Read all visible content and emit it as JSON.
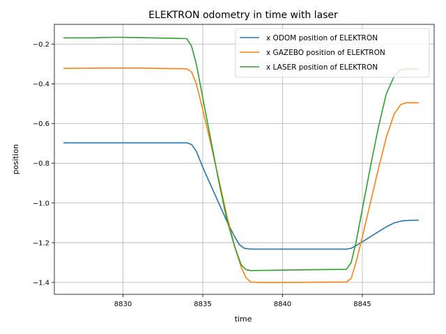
{
  "chart_data": {
    "type": "line",
    "title": "ELEKTRON odometry in time with laser",
    "xlabel": "time",
    "ylabel": "position",
    "xlim": [
      8825.7,
      8849.5
    ],
    "ylim": [
      -1.46,
      -0.1
    ],
    "xticks": [
      8830,
      8835,
      8840,
      8845
    ],
    "yticks": [
      -1.4,
      -1.2,
      -1.0,
      -0.8,
      -0.6,
      -0.4,
      -0.2
    ],
    "xtick_labels": [
      "8830",
      "8835",
      "8840",
      "8845"
    ],
    "ytick_labels": [
      "−1.4",
      "−1.2",
      "−1.0",
      "−0.8",
      "−0.6",
      "−0.4",
      "−0.2"
    ],
    "grid": true,
    "legend_position": "top-right",
    "series": [
      {
        "name": "x ODOM position of ELEKTRON",
        "color": "#1f77b4",
        "points": [
          [
            8826.3,
            -0.697
          ],
          [
            8830.0,
            -0.697
          ],
          [
            8834.0,
            -0.697
          ],
          [
            8834.3,
            -0.705
          ],
          [
            8834.6,
            -0.74
          ],
          [
            8835.0,
            -0.82
          ],
          [
            8835.5,
            -0.91
          ],
          [
            8836.0,
            -1.0
          ],
          [
            8836.5,
            -1.09
          ],
          [
            8837.0,
            -1.17
          ],
          [
            8837.3,
            -1.21
          ],
          [
            8837.6,
            -1.228
          ],
          [
            8838.0,
            -1.232
          ],
          [
            8840.0,
            -1.232
          ],
          [
            8844.0,
            -1.232
          ],
          [
            8844.3,
            -1.228
          ],
          [
            8844.6,
            -1.215
          ],
          [
            8845.0,
            -1.195
          ],
          [
            8845.5,
            -1.17
          ],
          [
            8846.0,
            -1.145
          ],
          [
            8846.5,
            -1.12
          ],
          [
            8847.0,
            -1.1
          ],
          [
            8847.5,
            -1.09
          ],
          [
            8848.0,
            -1.087
          ],
          [
            8848.5,
            -1.087
          ]
        ]
      },
      {
        "name": "x GAZEBO position of ELEKTRON",
        "color": "#ff7f0e",
        "points": [
          [
            8826.3,
            -0.322
          ],
          [
            8829.0,
            -0.32
          ],
          [
            8831.0,
            -0.32
          ],
          [
            8834.0,
            -0.324
          ],
          [
            8834.3,
            -0.34
          ],
          [
            8834.6,
            -0.4
          ],
          [
            8835.0,
            -0.53
          ],
          [
            8835.5,
            -0.7
          ],
          [
            8836.0,
            -0.88
          ],
          [
            8836.5,
            -1.06
          ],
          [
            8837.0,
            -1.22
          ],
          [
            8837.4,
            -1.32
          ],
          [
            8837.7,
            -1.375
          ],
          [
            8838.0,
            -1.398
          ],
          [
            8838.5,
            -1.4
          ],
          [
            8840.0,
            -1.4
          ],
          [
            8844.0,
            -1.398
          ],
          [
            8844.3,
            -1.38
          ],
          [
            8844.6,
            -1.3
          ],
          [
            8845.0,
            -1.17
          ],
          [
            8845.5,
            -1.0
          ],
          [
            8846.0,
            -0.83
          ],
          [
            8846.5,
            -0.67
          ],
          [
            8847.0,
            -0.55
          ],
          [
            8847.4,
            -0.505
          ],
          [
            8847.7,
            -0.495
          ],
          [
            8848.5,
            -0.495
          ]
        ]
      },
      {
        "name": "x LASER position of ELEKTRON",
        "color": "#2ca02c",
        "points": [
          [
            8826.3,
            -0.168
          ],
          [
            8828.0,
            -0.168
          ],
          [
            8829.5,
            -0.165
          ],
          [
            8831.0,
            -0.167
          ],
          [
            8834.0,
            -0.172
          ],
          [
            8834.3,
            -0.21
          ],
          [
            8834.6,
            -0.3
          ],
          [
            8835.0,
            -0.47
          ],
          [
            8835.5,
            -0.68
          ],
          [
            8836.0,
            -0.89
          ],
          [
            8836.5,
            -1.08
          ],
          [
            8837.0,
            -1.22
          ],
          [
            8837.4,
            -1.31
          ],
          [
            8837.7,
            -1.335
          ],
          [
            8838.0,
            -1.34
          ],
          [
            8840.0,
            -1.338
          ],
          [
            8842.0,
            -1.336
          ],
          [
            8844.0,
            -1.334
          ],
          [
            8844.3,
            -1.3
          ],
          [
            8844.6,
            -1.2
          ],
          [
            8845.0,
            -1.03
          ],
          [
            8845.5,
            -0.82
          ],
          [
            8846.0,
            -0.62
          ],
          [
            8846.5,
            -0.45
          ],
          [
            8847.0,
            -0.36
          ],
          [
            8847.4,
            -0.33
          ],
          [
            8847.8,
            -0.325
          ],
          [
            8848.5,
            -0.325
          ]
        ]
      }
    ]
  }
}
